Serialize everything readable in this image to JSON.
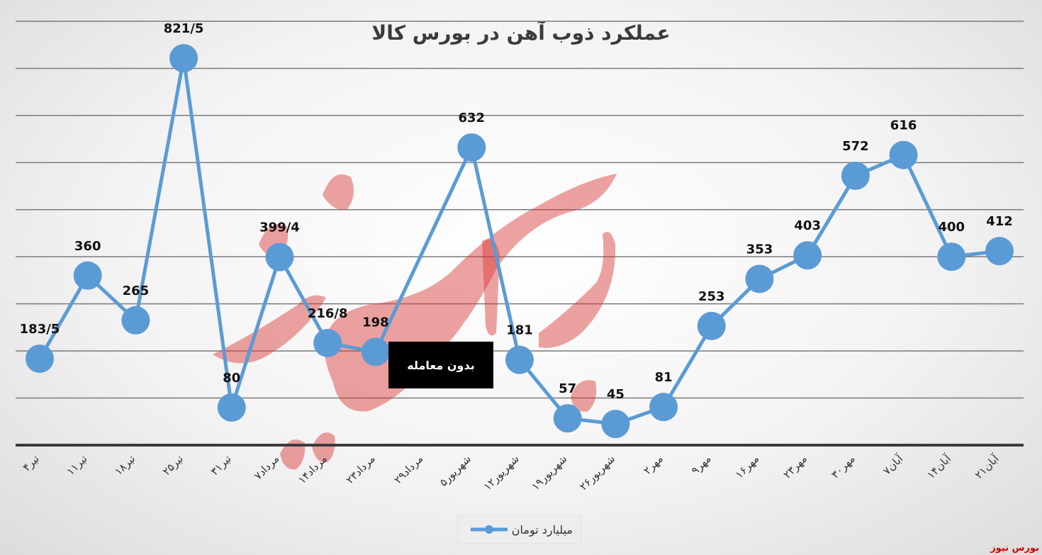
{
  "chart_data": {
    "type": "line",
    "title": "عملکرد ذوب آهن در بورس کالا",
    "categories": [
      "۴تیر",
      "۱۱تیر",
      "۱۸تیر",
      "۲۵تیر",
      "۳۱تیر",
      "۷مرداد",
      "۱۴مرداد",
      "۲۳مرداد",
      "۲۹مرداد",
      "۵شهریور",
      "۱۲شهریور",
      "۱۹شهریور",
      "۲۶شهریور",
      "۲مهر",
      "۹مهر",
      "۱۶مهر",
      "۲۳مهر",
      "۳۰مهر",
      "۷آبان",
      "۱۴آبان",
      "۲۱آبان"
    ],
    "series": [
      {
        "name": "میلیارد تومان",
        "values": [
          183.5,
          360,
          265,
          821.5,
          80,
          399.4,
          216.8,
          198,
          null,
          632,
          181,
          57,
          45,
          81,
          253,
          353,
          403,
          572,
          616,
          400,
          412
        ],
        "labels": [
          "183/5",
          "360",
          "265",
          "821/5",
          "80",
          "399/4",
          "216/8",
          "198",
          "",
          "632",
          "181",
          "57",
          "45",
          "81",
          "253",
          "353",
          "403",
          "572",
          "616",
          "400",
          "412"
        ],
        "color": "#5b9bd5"
      }
    ],
    "ylim": [
      0,
      900
    ],
    "grid": true,
    "legend": "bottom",
    "annotation": "بدون معامله",
    "source": "بورس نیوز"
  }
}
